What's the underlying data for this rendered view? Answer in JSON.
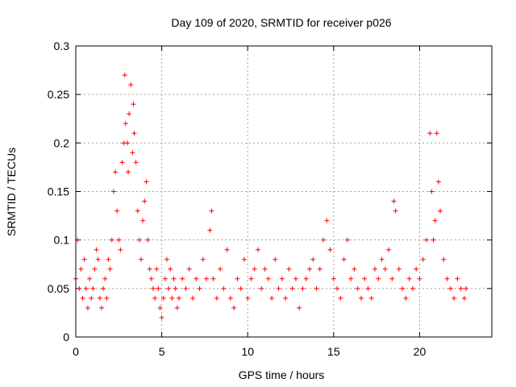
{
  "chart_data": {
    "type": "scatter",
    "title": "Day 109 of 2020, SRMTID for receiver p026",
    "xlabel": "GPS time / hours",
    "ylabel": "SRMTID / TECUs",
    "xlim": [
      0,
      24.2
    ],
    "ylim": [
      0,
      0.3
    ],
    "xticks": [
      0,
      5,
      10,
      15,
      20
    ],
    "xtick_labels": [
      "0",
      "5",
      "10",
      "15",
      "20"
    ],
    "yticks": [
      0,
      0.05,
      0.1,
      0.15,
      0.2,
      0.25,
      0.3
    ],
    "ytick_labels": [
      "0",
      "0.05",
      "0.1",
      "0.15",
      "0.2",
      "0.25",
      "0.3"
    ],
    "grid": true,
    "marker": "+",
    "color": "#ff0000",
    "series": [
      {
        "name": "SRMTID",
        "x": [
          0.0,
          0.1,
          0.2,
          0.3,
          0.4,
          0.5,
          0.6,
          0.7,
          0.8,
          0.9,
          1.0,
          1.1,
          1.2,
          1.3,
          1.4,
          1.5,
          1.6,
          1.7,
          1.8,
          1.9,
          2.0,
          2.1,
          2.2,
          2.3,
          2.4,
          2.5,
          2.6,
          2.7,
          2.8,
          2.85,
          2.9,
          3.0,
          3.05,
          3.1,
          3.2,
          3.3,
          3.35,
          3.4,
          3.5,
          3.6,
          3.7,
          3.8,
          3.9,
          4.0,
          4.1,
          4.2,
          4.3,
          4.4,
          4.5,
          4.6,
          4.7,
          4.8,
          4.9,
          5.0,
          5.1,
          5.2,
          5.3,
          5.4,
          5.5,
          5.6,
          5.7,
          5.8,
          5.9,
          6.0,
          6.2,
          6.4,
          6.6,
          6.8,
          7.0,
          7.2,
          7.4,
          7.6,
          7.8,
          7.9,
          8.0,
          8.2,
          8.4,
          8.6,
          8.8,
          9.0,
          9.2,
          9.4,
          9.6,
          9.8,
          10.0,
          10.2,
          10.4,
          10.6,
          10.8,
          11.0,
          11.2,
          11.4,
          11.6,
          11.8,
          12.0,
          12.2,
          12.4,
          12.6,
          12.8,
          13.0,
          13.2,
          13.4,
          13.6,
          13.8,
          14.0,
          14.2,
          14.4,
          14.6,
          14.8,
          15.0,
          15.2,
          15.4,
          15.6,
          15.8,
          16.0,
          16.2,
          16.4,
          16.6,
          16.8,
          17.0,
          17.2,
          17.4,
          17.6,
          17.8,
          18.0,
          18.2,
          18.4,
          18.5,
          18.6,
          18.8,
          19.0,
          19.2,
          19.4,
          19.6,
          19.8,
          20.0,
          20.2,
          20.4,
          20.6,
          20.7,
          20.8,
          20.9,
          21.0,
          21.1,
          21.2,
          21.4,
          21.6,
          21.8,
          22.0,
          22.2,
          22.4,
          22.6,
          22.7
        ],
        "y": [
          0.06,
          0.1,
          0.05,
          0.07,
          0.04,
          0.08,
          0.05,
          0.03,
          0.06,
          0.04,
          0.05,
          0.07,
          0.09,
          0.08,
          0.04,
          0.03,
          0.05,
          0.06,
          0.04,
          0.08,
          0.07,
          0.1,
          0.15,
          0.17,
          0.13,
          0.1,
          0.09,
          0.18,
          0.2,
          0.27,
          0.22,
          0.2,
          0.17,
          0.23,
          0.26,
          0.19,
          0.24,
          0.21,
          0.18,
          0.13,
          0.1,
          0.08,
          0.12,
          0.14,
          0.16,
          0.1,
          0.07,
          0.06,
          0.05,
          0.04,
          0.07,
          0.05,
          0.03,
          0.02,
          0.04,
          0.06,
          0.08,
          0.05,
          0.07,
          0.04,
          0.06,
          0.05,
          0.03,
          0.04,
          0.06,
          0.05,
          0.07,
          0.04,
          0.06,
          0.05,
          0.08,
          0.06,
          0.11,
          0.13,
          0.06,
          0.04,
          0.07,
          0.05,
          0.09,
          0.04,
          0.03,
          0.06,
          0.05,
          0.08,
          0.04,
          0.06,
          0.07,
          0.09,
          0.05,
          0.07,
          0.06,
          0.04,
          0.08,
          0.05,
          0.06,
          0.04,
          0.07,
          0.05,
          0.06,
          0.03,
          0.05,
          0.06,
          0.07,
          0.08,
          0.05,
          0.07,
          0.1,
          0.12,
          0.09,
          0.06,
          0.05,
          0.04,
          0.08,
          0.1,
          0.06,
          0.07,
          0.05,
          0.04,
          0.06,
          0.05,
          0.04,
          0.07,
          0.06,
          0.08,
          0.07,
          0.09,
          0.06,
          0.14,
          0.13,
          0.07,
          0.05,
          0.04,
          0.06,
          0.05,
          0.07,
          0.06,
          0.08,
          0.1,
          0.21,
          0.15,
          0.1,
          0.12,
          0.21,
          0.16,
          0.13,
          0.08,
          0.06,
          0.05,
          0.04,
          0.06,
          0.05,
          0.04,
          0.05
        ]
      }
    ]
  }
}
